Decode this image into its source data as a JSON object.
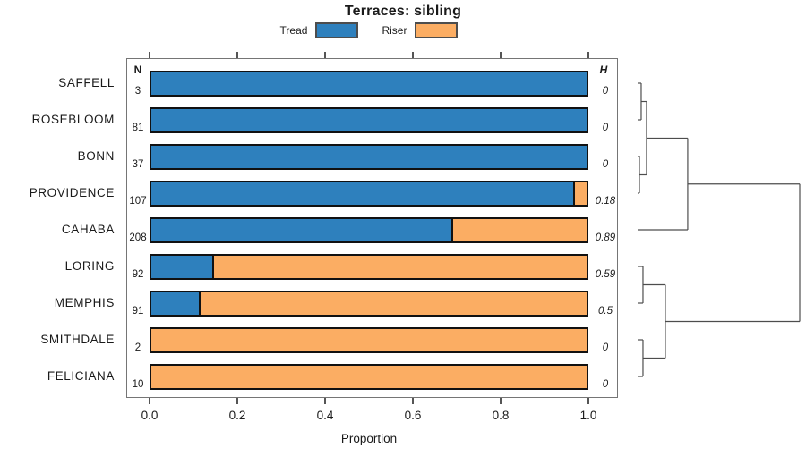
{
  "chart_data": {
    "type": "bar",
    "orientation": "horizontal",
    "stacked": true,
    "title": "Terraces: sibling",
    "xlabel": "Proportion",
    "xlim": [
      0,
      1
    ],
    "x_ticks": [
      0.0,
      0.2,
      0.4,
      0.6,
      0.8,
      1.0
    ],
    "grid": false,
    "legend_position": "top",
    "n_header": "N",
    "h_header": "H",
    "categories": [
      "SAFFELL",
      "ROSEBLOOM",
      "BONN",
      "PROVIDENCE",
      "CAHABA",
      "LORING",
      "MEMPHIS",
      "SMITHDALE",
      "FELICIANA"
    ],
    "n_values": [
      3,
      81,
      37,
      107,
      208,
      92,
      91,
      2,
      10
    ],
    "h_values": [
      "0",
      "0",
      "0",
      "0.18",
      "0.89",
      "0.59",
      "0.5",
      "0",
      "0"
    ],
    "series": [
      {
        "name": "Tread",
        "values": [
          1.0,
          1.0,
          1.0,
          0.97,
          0.69,
          0.14,
          0.11,
          0.0,
          0.0
        ]
      },
      {
        "name": "Riser",
        "values": [
          0.0,
          0.0,
          0.0,
          0.03,
          0.31,
          0.86,
          0.89,
          1.0,
          1.0
        ]
      }
    ],
    "colors": {
      "tread": "#2E80BD",
      "riser": "#FBAD63",
      "bar_border": "#111111",
      "dendrogram_line": "#4d4d4d"
    },
    "dendrogram": {
      "side": "right",
      "merges": [
        {
          "a": 0,
          "b": 1,
          "h": 0.022
        },
        {
          "a": 2,
          "b": 3,
          "h": 0.011
        },
        {
          "a": "m0",
          "b": "m1",
          "h": 0.055
        },
        {
          "a": "m2",
          "b": 4,
          "h": 0.309
        },
        {
          "a": 5,
          "b": 6,
          "h": 0.033
        },
        {
          "a": 7,
          "b": 8,
          "h": 0.033
        },
        {
          "a": "m4",
          "b": "m5",
          "h": 0.171
        },
        {
          "a": "m3",
          "b": "m6",
          "h": 1.0
        }
      ]
    }
  }
}
